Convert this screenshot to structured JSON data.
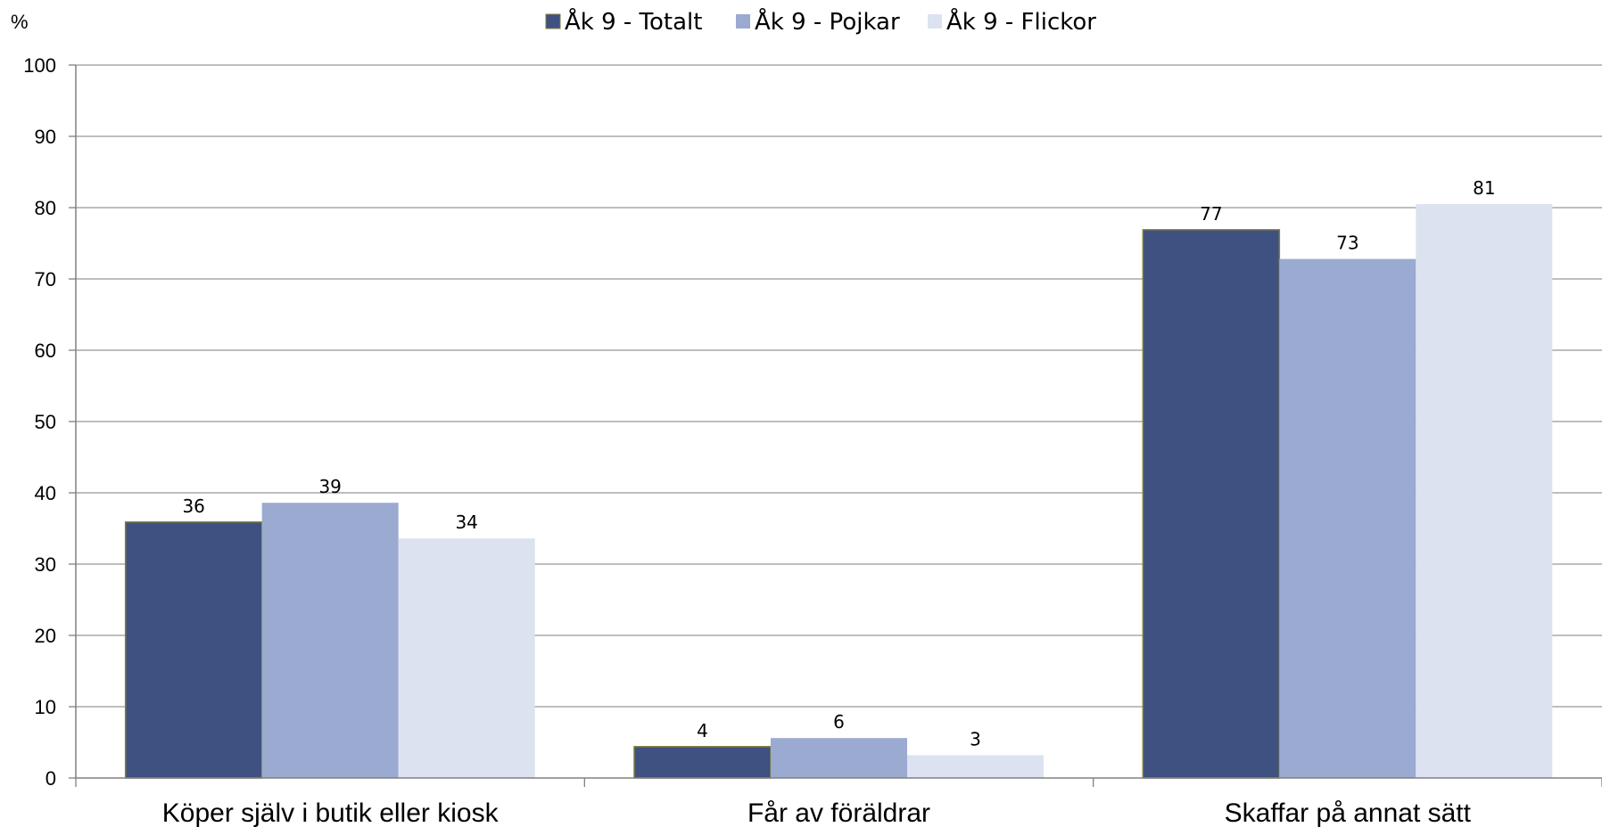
{
  "chart_data": {
    "type": "bar",
    "title": "",
    "xlabel": "",
    "ylabel": "%",
    "ylim": [
      0,
      100
    ],
    "yticks": [
      0,
      10,
      20,
      30,
      40,
      50,
      60,
      70,
      80,
      90,
      100
    ],
    "grid": true,
    "legend_position": "top-center",
    "categories": [
      "Köper själv i butik eller kiosk",
      "Får av föräldrar",
      "Skaffar på annat sätt"
    ],
    "series": [
      {
        "name": "Åk 9 - Totalt",
        "color": "#3f5180",
        "values": [
          36,
          4,
          77
        ],
        "plotted": [
          35.9,
          4.4,
          76.9
        ]
      },
      {
        "name": "Åk 9 - Pojkar",
        "color": "#9aaad1",
        "values": [
          39,
          6,
          73
        ],
        "plotted": [
          38.6,
          5.6,
          72.8
        ]
      },
      {
        "name": "Åk 9 - Flickor",
        "color": "#dce2f0",
        "values": [
          34,
          3,
          81
        ],
        "plotted": [
          33.6,
          3.2,
          80.5
        ]
      }
    ],
    "colors": {
      "gridline": "#969696",
      "axis": "#808080",
      "bar_outline": "#7f7f3f"
    }
  }
}
